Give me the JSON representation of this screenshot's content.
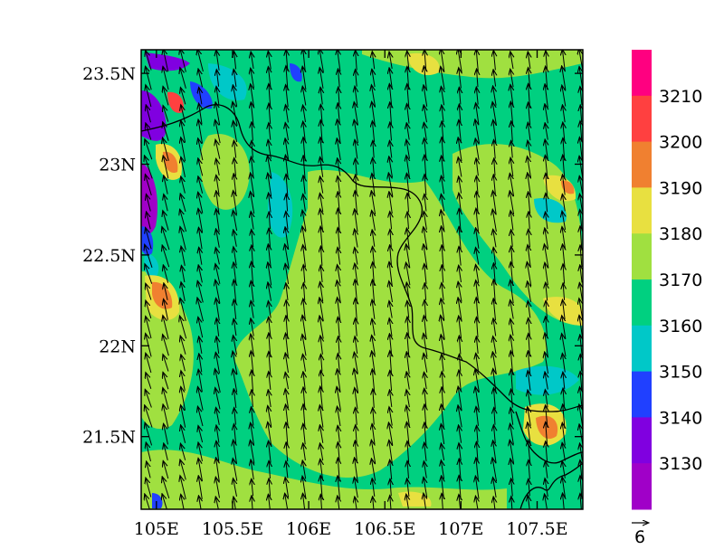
{
  "chart_data": {
    "type": "heatmap",
    "title": "",
    "xlabel": "",
    "ylabel": "",
    "x_ticks": [
      "105E",
      "105.5E",
      "106E",
      "106.5E",
      "107E",
      "107.5E"
    ],
    "x_tick_values": [
      105,
      105.5,
      106,
      106.5,
      107,
      107.5
    ],
    "y_ticks": [
      "23.5N",
      "23N",
      "22.5N",
      "22N",
      "21.5N"
    ],
    "y_tick_values": [
      23.5,
      23,
      22.5,
      22,
      21.5
    ],
    "xlim": [
      104.9,
      107.8
    ],
    "ylim": [
      21.1,
      23.63
    ],
    "colorbar": {
      "labels": [
        "3210",
        "3200",
        "3190",
        "3180",
        "3170",
        "3160",
        "3150",
        "3140",
        "3130"
      ],
      "colors": [
        "#ff0080",
        "#ff4040",
        "#f08030",
        "#e8e040",
        "#a0e040",
        "#00d080",
        "#00c8c8",
        "#2040ff",
        "#8000e0",
        "#a000c8"
      ]
    },
    "vector_reference": {
      "label": "6"
    },
    "wind_direction": "north-northwest",
    "dominant_value_range": [
      3160,
      3180
    ]
  }
}
